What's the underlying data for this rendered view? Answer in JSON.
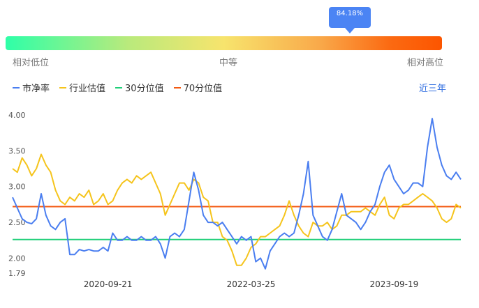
{
  "gauge": {
    "value_text": "84.18%",
    "value": 0.8418,
    "low_label": "相对低位",
    "mid_label": "中等",
    "high_label": "相对高位"
  },
  "period_label": "近三年",
  "colors": {
    "pb": "#4a7ef0",
    "industry": "#f5c41c",
    "p30": "#1fcf78",
    "p70": "#f35a12"
  },
  "chart_data": {
    "type": "line",
    "legend": [
      "市净率",
      "行业估值",
      "30分位值",
      "70分位值"
    ],
    "ylim": [
      1.79,
      4.0
    ],
    "yticks": [
      "4.00",
      "3.50",
      "3.00",
      "2.50",
      "2.00",
      "1.79"
    ],
    "ytick_values": [
      4.0,
      3.5,
      3.0,
      2.5,
      2.0,
      1.79
    ],
    "x_ticks": [
      "2020-09-21",
      "2022-03-25",
      "2023-09-19"
    ],
    "x_tick_index": [
      20,
      50,
      80
    ],
    "num_points": 95,
    "series": [
      {
        "name": "市净率",
        "values": [
          2.85,
          2.7,
          2.55,
          2.5,
          2.48,
          2.55,
          2.9,
          2.6,
          2.45,
          2.4,
          2.5,
          2.55,
          2.05,
          2.05,
          2.12,
          2.1,
          2.12,
          2.1,
          2.1,
          2.15,
          2.1,
          2.35,
          2.25,
          2.25,
          2.3,
          2.25,
          2.25,
          2.3,
          2.25,
          2.25,
          2.3,
          2.2,
          2.0,
          2.3,
          2.35,
          2.3,
          2.4,
          2.8,
          3.2,
          2.95,
          2.6,
          2.5,
          2.5,
          2.45,
          2.5,
          2.4,
          2.3,
          2.2,
          2.3,
          2.25,
          2.3,
          1.95,
          2.0,
          1.85,
          2.1,
          2.2,
          2.3,
          2.35,
          2.3,
          2.35,
          2.6,
          2.9,
          3.35,
          2.6,
          2.45,
          2.3,
          2.25,
          2.4,
          2.65,
          2.9,
          2.6,
          2.55,
          2.5,
          2.4,
          2.5,
          2.65,
          2.75,
          3.0,
          3.2,
          3.3,
          3.1,
          3.0,
          2.9,
          2.95,
          3.05,
          3.05,
          3.0,
          3.55,
          3.95,
          3.55,
          3.3,
          3.15,
          3.1,
          3.2,
          3.1
        ]
      },
      {
        "name": "行业估值",
        "values": [
          3.25,
          3.2,
          3.4,
          3.3,
          3.15,
          3.25,
          3.45,
          3.3,
          3.2,
          2.95,
          2.8,
          2.75,
          2.85,
          2.8,
          2.9,
          2.85,
          2.95,
          2.75,
          2.8,
          2.9,
          2.75,
          2.8,
          2.95,
          3.05,
          3.1,
          3.05,
          3.15,
          3.1,
          3.15,
          3.2,
          3.05,
          2.9,
          2.6,
          2.75,
          2.9,
          3.05,
          3.05,
          2.95,
          3.1,
          3.05,
          2.85,
          2.8,
          2.5,
          2.5,
          2.3,
          2.25,
          2.1,
          1.9,
          1.9,
          2.0,
          2.15,
          2.2,
          2.3,
          2.3,
          2.35,
          2.4,
          2.45,
          2.6,
          2.8,
          2.6,
          2.45,
          2.35,
          2.3,
          2.5,
          2.45,
          2.45,
          2.5,
          2.4,
          2.45,
          2.6,
          2.6,
          2.65,
          2.65,
          2.65,
          2.7,
          2.65,
          2.6,
          2.75,
          2.85,
          2.6,
          2.55,
          2.7,
          2.75,
          2.75,
          2.8,
          2.85,
          2.9,
          2.85,
          2.8,
          2.7,
          2.55,
          2.5,
          2.55,
          2.75,
          2.7
        ]
      },
      {
        "name": "30分位值",
        "values": [
          2.26
        ]
      },
      {
        "name": "70分位值",
        "values": [
          2.72
        ]
      }
    ]
  }
}
